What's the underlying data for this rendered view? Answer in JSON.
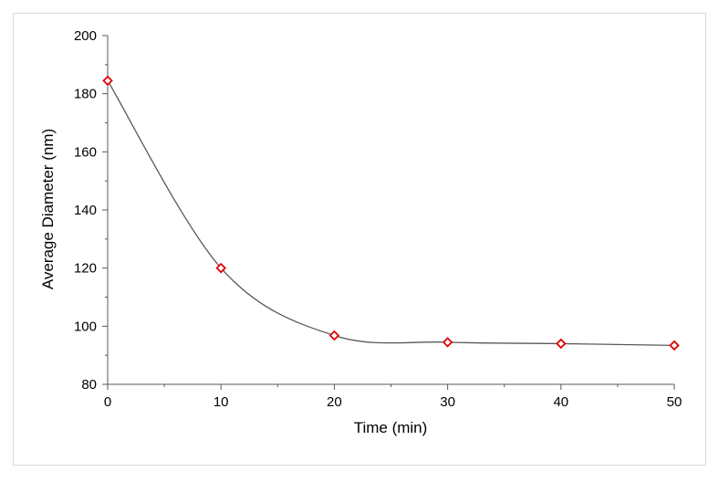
{
  "chart_data": {
    "type": "scatter",
    "title": "",
    "xlabel": "Time (min)",
    "ylabel": "Average Diameter (nm)",
    "xlim": [
      0,
      50
    ],
    "ylim": [
      80,
      200
    ],
    "xticks": [
      0,
      10,
      20,
      30,
      40,
      50
    ],
    "yticks": [
      80,
      100,
      120,
      140,
      160,
      180,
      200
    ],
    "grid": false,
    "legend": "none",
    "smooth_line": true,
    "line_color": "#595959",
    "marker": "diamond-open",
    "marker_color": "#e00000",
    "series": [
      {
        "x": [
          0,
          10,
          20,
          30,
          40,
          50
        ],
        "y": [
          184.5,
          120,
          96.8,
          94.5,
          94.0,
          93.4
        ]
      }
    ]
  }
}
